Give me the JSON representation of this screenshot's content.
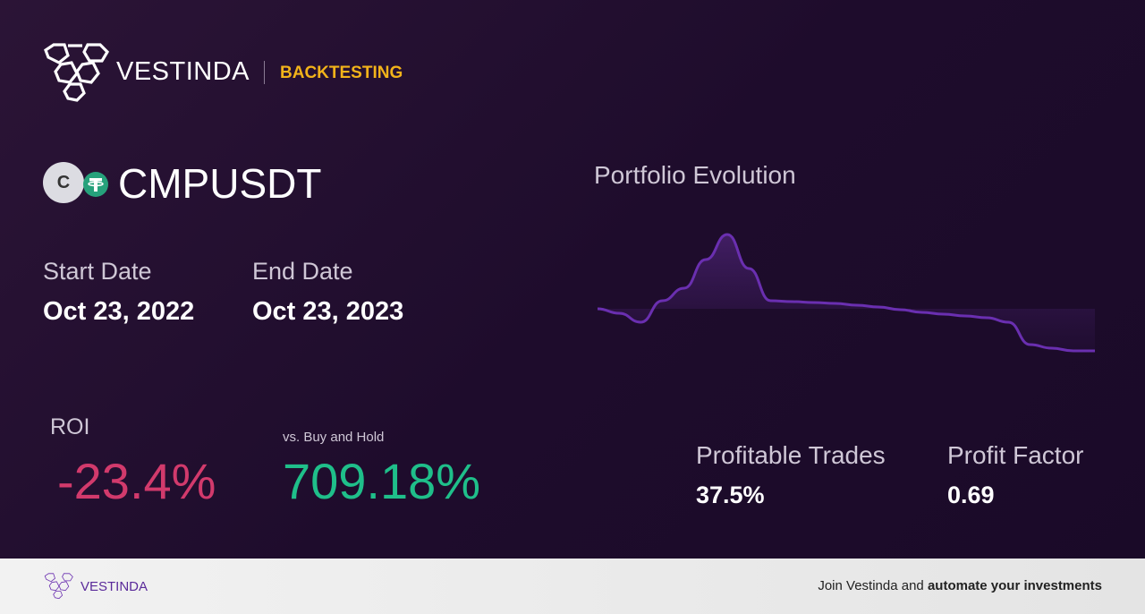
{
  "header": {
    "brand": "VESTINDA",
    "section": "BACKTESTING"
  },
  "symbol": {
    "icon_letter": "C",
    "name": "CMPUSDT"
  },
  "dates": {
    "start_label": "Start Date",
    "start": "Oct 23, 2022",
    "end_label": "End Date",
    "end": "Oct 23, 2023"
  },
  "roi": {
    "label": "ROI",
    "value": "-23.4%",
    "compare_label": "vs. Buy and Hold",
    "compare_value": "709.18%"
  },
  "stats": {
    "trades_label": "Profitable Trades",
    "trades_value": "37.5%",
    "factor_label": "Profit Factor",
    "factor_value": "0.69"
  },
  "chart_data": {
    "type": "line",
    "title": "Portfolio Evolution",
    "color": "#6a2fb0",
    "values": [
      1000,
      975,
      925,
      1045,
      1115,
      1275,
      1415,
      1225,
      1045,
      1040,
      1035,
      1030,
      1020,
      1010,
      995,
      980,
      970,
      960,
      950,
      925,
      800,
      780,
      765,
      765
    ]
  },
  "footer": {
    "brand": "VESTINDA",
    "cta_plain": "Join Vestinda and",
    "cta_bold": "automate your investments"
  }
}
